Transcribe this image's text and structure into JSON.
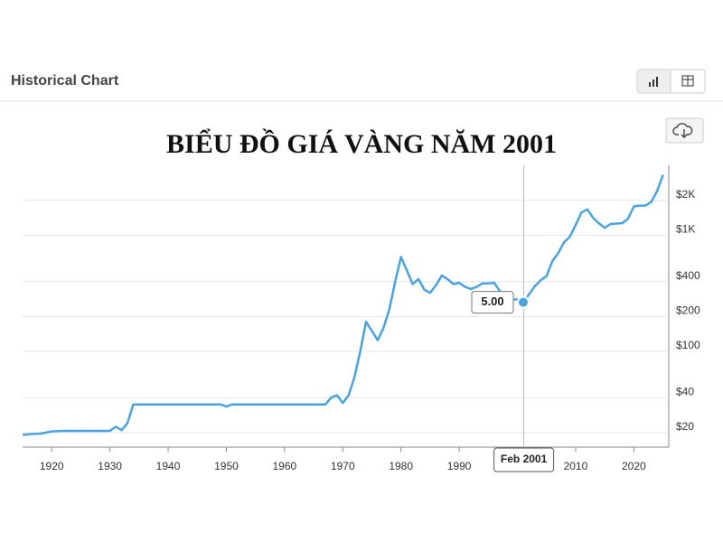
{
  "header": {
    "title": "Historical Chart"
  },
  "chart_data": {
    "type": "line",
    "title": "BIỂU ĐỒ GIÁ VÀNG NĂM 2001",
    "x": [
      1915,
      1916,
      1917,
      1918,
      1919,
      1920,
      1921,
      1922,
      1923,
      1924,
      1925,
      1926,
      1927,
      1928,
      1929,
      1930,
      1931,
      1932,
      1933,
      1934,
      1935,
      1936,
      1937,
      1938,
      1939,
      1940,
      1941,
      1942,
      1943,
      1944,
      1945,
      1946,
      1947,
      1948,
      1949,
      1950,
      1951,
      1952,
      1953,
      1954,
      1955,
      1956,
      1957,
      1958,
      1959,
      1960,
      1961,
      1962,
      1963,
      1964,
      1965,
      1966,
      1967,
      1968,
      1969,
      1970,
      1971,
      1972,
      1973,
      1974,
      1975,
      1976,
      1977,
      1978,
      1979,
      1980,
      1981,
      1982,
      1983,
      1984,
      1985,
      1986,
      1987,
      1988,
      1989,
      1990,
      1991,
      1992,
      1993,
      1994,
      1995,
      1996,
      1997,
      1998,
      1999,
      2000,
      2001,
      2002,
      2003,
      2004,
      2005,
      2006,
      2007,
      2008,
      2009,
      2010,
      2011,
      2012,
      2013,
      2014,
      2015,
      2016,
      2017,
      2018,
      2019,
      2020,
      2021,
      2022,
      2023,
      2024,
      2025
    ],
    "series": [
      {
        "color": "#4aa3df",
        "values": [
          19.2,
          19.3,
          19.5,
          19.6,
          20,
          20.5,
          20.6,
          20.7,
          20.7,
          20.7,
          20.7,
          20.7,
          20.7,
          20.7,
          20.7,
          20.7,
          22.5,
          21,
          24,
          35,
          35,
          35,
          35,
          35,
          35,
          35,
          35,
          35,
          35,
          35,
          35,
          35,
          35,
          35,
          35,
          33.5,
          35,
          35,
          35,
          35,
          35,
          35,
          35,
          35,
          35,
          35,
          35,
          35,
          35,
          35,
          35,
          35,
          35,
          40,
          42,
          36,
          42,
          60,
          100,
          180,
          150,
          125,
          160,
          230,
          400,
          650,
          500,
          380,
          420,
          340,
          320,
          370,
          450,
          420,
          380,
          390,
          360,
          345,
          360,
          385,
          385,
          390,
          330,
          295,
          280,
          280,
          265,
          310,
          365,
          410,
          445,
          600,
          700,
          870,
          970,
          1225,
          1570,
          1670,
          1410,
          1265,
          1160,
          1250,
          1260,
          1270,
          1390,
          1770,
          1800,
          1800,
          1940,
          2400,
          3300
        ]
      }
    ],
    "xlim": [
      1915,
      2026
    ],
    "xticks": [
      1920,
      1930,
      1940,
      1950,
      1960,
      1970,
      1980,
      1990,
      2000,
      2010,
      2020
    ],
    "ylim": [
      15,
      4000
    ],
    "yticks": [
      {
        "value": 20,
        "label": "$20"
      },
      {
        "value": 40,
        "label": "$40"
      },
      {
        "value": 100,
        "label": "$100"
      },
      {
        "value": 200,
        "label": "$200"
      },
      {
        "value": 400,
        "label": "$400"
      },
      {
        "value": 1000,
        "label": "$1K"
      },
      {
        "value": 2000,
        "label": "$2K"
      }
    ],
    "y_scale": "log",
    "grid": true,
    "crosshair": {
      "x": 2001.1,
      "label": "Feb 2001"
    },
    "annotation": "5.00"
  }
}
